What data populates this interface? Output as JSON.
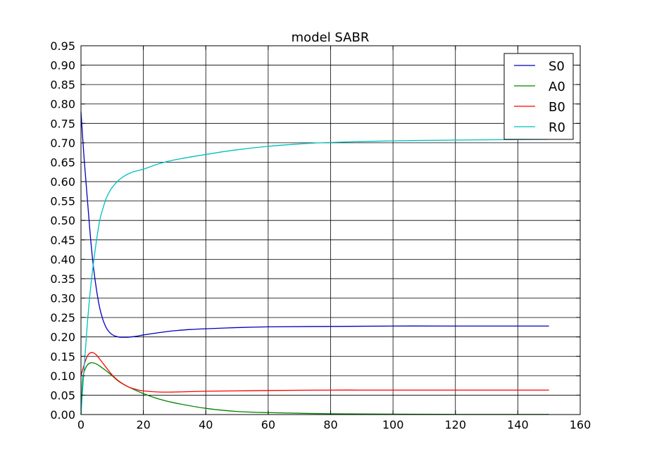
{
  "chart_data": {
    "type": "line",
    "title": "model SABR",
    "xlabel": "",
    "ylabel": "",
    "xlim": [
      0,
      160
    ],
    "ylim": [
      0,
      0.95
    ],
    "xticks": [
      0,
      20,
      40,
      60,
      80,
      100,
      120,
      140,
      160
    ],
    "yticks": [
      0.0,
      0.05,
      0.1,
      0.15,
      0.2,
      0.25,
      0.3,
      0.35,
      0.4,
      0.45,
      0.5,
      0.55,
      0.6,
      0.65,
      0.7,
      0.75,
      0.8,
      0.85,
      0.9,
      0.95
    ],
    "xtick_labels": [
      "0",
      "20",
      "40",
      "60",
      "80",
      "100",
      "120",
      "140",
      "160"
    ],
    "ytick_labels": [
      "0.00",
      "0.05",
      "0.10",
      "0.15",
      "0.20",
      "0.25",
      "0.30",
      "0.35",
      "0.40",
      "0.45",
      "0.50",
      "0.55",
      "0.60",
      "0.65",
      "0.70",
      "0.75",
      "0.80",
      "0.85",
      "0.90",
      "0.95"
    ],
    "grid": true,
    "legend_position": "top-right",
    "series": [
      {
        "name": "S0",
        "color": "#0000bf",
        "x": [
          0,
          1,
          2,
          3,
          4,
          5,
          6,
          7,
          8,
          9,
          10,
          11,
          12,
          13,
          14,
          15,
          16,
          18,
          20,
          25,
          30,
          35,
          40,
          50,
          60,
          80,
          100,
          120,
          150
        ],
        "y": [
          0.78,
          0.66,
          0.56,
          0.46,
          0.38,
          0.32,
          0.275,
          0.245,
          0.225,
          0.213,
          0.206,
          0.202,
          0.2,
          0.199,
          0.199,
          0.199,
          0.2,
          0.202,
          0.205,
          0.211,
          0.216,
          0.219,
          0.221,
          0.224,
          0.226,
          0.227,
          0.228,
          0.228,
          0.228
        ]
      },
      {
        "name": "A0",
        "color": "#008000",
        "x": [
          0,
          0.5,
          1,
          2,
          3,
          4,
          5,
          6,
          8,
          10,
          12,
          15,
          20,
          25,
          30,
          40,
          50,
          60,
          80,
          100,
          120,
          150
        ],
        "y": [
          0.0,
          0.085,
          0.11,
          0.127,
          0.133,
          0.133,
          0.13,
          0.125,
          0.113,
          0.1,
          0.086,
          0.072,
          0.054,
          0.04,
          0.03,
          0.016,
          0.008,
          0.005,
          0.002,
          0.001,
          0.0005,
          0.0005
        ]
      },
      {
        "name": "B0",
        "color": "#ff0000",
        "x": [
          0,
          1,
          2,
          3,
          4,
          5,
          6,
          8,
          10,
          12,
          15,
          18,
          20,
          25,
          30,
          40,
          50,
          60,
          80,
          100,
          150
        ],
        "y": [
          0.1,
          0.128,
          0.15,
          0.159,
          0.159,
          0.153,
          0.143,
          0.122,
          0.102,
          0.087,
          0.072,
          0.064,
          0.061,
          0.058,
          0.058,
          0.06,
          0.061,
          0.062,
          0.063,
          0.063,
          0.063
        ]
      },
      {
        "name": "R0",
        "color": "#00bfbf",
        "x": [
          0,
          1,
          2,
          3,
          4,
          5,
          6,
          7,
          8,
          9,
          10,
          12,
          14,
          16,
          18,
          20,
          25,
          30,
          40,
          50,
          60,
          70,
          80,
          100,
          120,
          150
        ],
        "y": [
          0.0,
          0.12,
          0.23,
          0.32,
          0.39,
          0.45,
          0.5,
          0.53,
          0.555,
          0.572,
          0.585,
          0.603,
          0.615,
          0.623,
          0.628,
          0.632,
          0.646,
          0.656,
          0.67,
          0.682,
          0.691,
          0.697,
          0.701,
          0.705,
          0.707,
          0.709
        ]
      }
    ]
  }
}
